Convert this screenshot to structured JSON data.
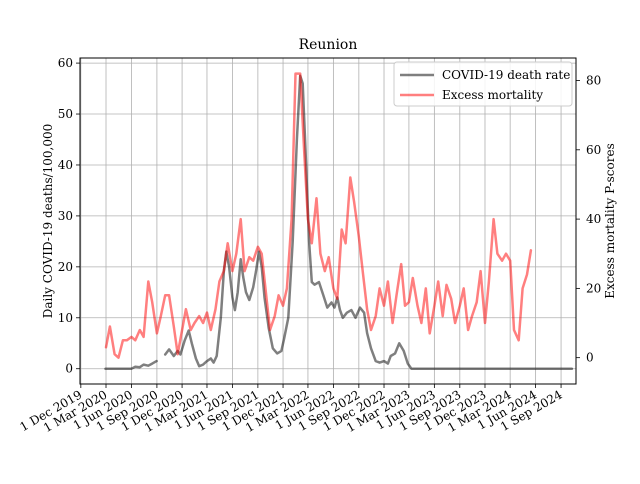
{
  "chart_data": {
    "type": "line",
    "title": "Reunion",
    "ylabel": "Daily COVID-19 deaths/100,000",
    "y2label": "Excess mortality P-scores",
    "ylim": [
      -3,
      61
    ],
    "y2lim": [
      -7.6,
      86.5
    ],
    "xlim": [
      "2019-11-28",
      "2024-10-25"
    ],
    "yticks": [
      0,
      10,
      20,
      30,
      40,
      50,
      60
    ],
    "y2ticks": [
      0,
      20,
      40,
      60,
      80
    ],
    "xticks": [
      {
        "date": "2019-12-01",
        "label": "1 Dec 2019"
      },
      {
        "date": "2020-03-01",
        "label": "1 Mar 2020"
      },
      {
        "date": "2020-06-01",
        "label": "1 Jun 2020"
      },
      {
        "date": "2020-09-01",
        "label": "1 Sep 2020"
      },
      {
        "date": "2020-12-01",
        "label": "1 Dec 2020"
      },
      {
        "date": "2021-03-01",
        "label": "1 Mar 2021"
      },
      {
        "date": "2021-06-01",
        "label": "1 Jun 2021"
      },
      {
        "date": "2021-09-01",
        "label": "1 Sep 2021"
      },
      {
        "date": "2021-12-01",
        "label": "1 Dec 2021"
      },
      {
        "date": "2022-03-01",
        "label": "1 Mar 2022"
      },
      {
        "date": "2022-06-01",
        "label": "1 Jun 2022"
      },
      {
        "date": "2022-09-01",
        "label": "1 Sep 2022"
      },
      {
        "date": "2022-12-01",
        "label": "1 Dec 2022"
      },
      {
        "date": "2023-03-01",
        "label": "1 Mar 2023"
      },
      {
        "date": "2023-06-01",
        "label": "1 Jun 2023"
      },
      {
        "date": "2023-09-01",
        "label": "1 Sep 2023"
      },
      {
        "date": "2023-12-01",
        "label": "1 Dec 2023"
      },
      {
        "date": "2024-03-01",
        "label": "1 Mar 2024"
      },
      {
        "date": "2024-06-01",
        "label": "1 Jun 2024"
      },
      {
        "date": "2024-09-01",
        "label": "1 Sep 2024"
      }
    ],
    "grid": true,
    "legend_position": "top-right",
    "series": [
      {
        "name": "COVID-19 death rate",
        "axis": "left",
        "color": "#000000",
        "opacity": 0.5,
        "points": [
          [
            "2020-02-28",
            0
          ],
          [
            "2020-04-20",
            0
          ],
          [
            "2020-05-10",
            0
          ],
          [
            "2020-06-01",
            0
          ],
          [
            "2020-06-15",
            0.4
          ],
          [
            "2020-07-01",
            0.3
          ],
          [
            "2020-07-15",
            0.8
          ],
          [
            "2020-08-01",
            0.6
          ],
          [
            "2020-08-15",
            1
          ],
          [
            "2020-08-31",
            1.5
          ],
          null,
          [
            "2020-10-01",
            2.8
          ],
          [
            "2020-10-15",
            3.8
          ],
          [
            "2020-11-01",
            2.5
          ],
          [
            "2020-11-15",
            3.5
          ],
          [
            "2020-11-25",
            2.8
          ],
          [
            "2020-12-10",
            5.5
          ],
          [
            "2020-12-25",
            7.5
          ],
          [
            "2021-01-05",
            5
          ],
          [
            "2021-01-20",
            2
          ],
          [
            "2021-02-01",
            0.5
          ],
          [
            "2021-02-15",
            0.8
          ],
          [
            "2021-03-01",
            1.5
          ],
          [
            "2021-03-15",
            2
          ],
          [
            "2021-03-25",
            1.2
          ],
          [
            "2021-04-05",
            2.5
          ],
          [
            "2021-04-20",
            10
          ],
          [
            "2021-05-01",
            19
          ],
          [
            "2021-05-10",
            23
          ],
          [
            "2021-05-20",
            20
          ],
          [
            "2021-06-01",
            14
          ],
          [
            "2021-06-10",
            11.5
          ],
          [
            "2021-06-20",
            15
          ],
          [
            "2021-07-01",
            21.5
          ],
          [
            "2021-07-10",
            18
          ],
          [
            "2021-07-20",
            15
          ],
          [
            "2021-08-01",
            13.5
          ],
          [
            "2021-08-15",
            16
          ],
          [
            "2021-08-25",
            19
          ],
          [
            "2021-09-05",
            23
          ],
          [
            "2021-09-15",
            20
          ],
          [
            "2021-09-25",
            14
          ],
          [
            "2021-10-10",
            8
          ],
          [
            "2021-10-25",
            4
          ],
          [
            "2021-11-10",
            3
          ],
          [
            "2021-11-25",
            3.5
          ],
          [
            "2021-12-05",
            6
          ],
          [
            "2021-12-20",
            10
          ],
          [
            "2022-01-05",
            25
          ],
          [
            "2022-01-20",
            45
          ],
          [
            "2022-02-01",
            57.5
          ],
          [
            "2022-02-10",
            56
          ],
          [
            "2022-02-20",
            43
          ],
          [
            "2022-03-05",
            25
          ],
          [
            "2022-03-15",
            17
          ],
          [
            "2022-03-25",
            16.5
          ],
          [
            "2022-04-10",
            17
          ],
          [
            "2022-04-25",
            14.5
          ],
          [
            "2022-05-10",
            12
          ],
          [
            "2022-05-25",
            13
          ],
          [
            "2022-06-05",
            12
          ],
          [
            "2022-06-15",
            14
          ],
          [
            "2022-06-25",
            11.5
          ],
          [
            "2022-07-05",
            10
          ],
          [
            "2022-07-20",
            11
          ],
          [
            "2022-08-05",
            11.5
          ],
          [
            "2022-08-20",
            10
          ],
          [
            "2022-09-05",
            12
          ],
          [
            "2022-09-20",
            11
          ],
          [
            "2022-10-01",
            7
          ],
          [
            "2022-10-15",
            4
          ],
          [
            "2022-11-01",
            1.5
          ],
          [
            "2022-11-15",
            1.2
          ],
          [
            "2022-12-01",
            1.5
          ],
          [
            "2022-12-15",
            1
          ],
          [
            "2022-12-25",
            2.5
          ],
          [
            "2023-01-10",
            3
          ],
          [
            "2023-01-25",
            5
          ],
          [
            "2023-02-10",
            3.5
          ],
          [
            "2023-02-25",
            1
          ],
          [
            "2023-03-10",
            0
          ],
          [
            "2024-10-10",
            0
          ]
        ]
      },
      {
        "name": "Excess mortality",
        "axis": "right",
        "color": "#ff0000",
        "opacity": 0.5,
        "points": [
          [
            "2020-03-01",
            3
          ],
          [
            "2020-03-15",
            9
          ],
          [
            "2020-04-01",
            1
          ],
          [
            "2020-04-15",
            0
          ],
          [
            "2020-05-01",
            5
          ],
          [
            "2020-05-15",
            5
          ],
          [
            "2020-06-01",
            6
          ],
          [
            "2020-06-15",
            5
          ],
          [
            "2020-07-01",
            8
          ],
          [
            "2020-07-15",
            6
          ],
          [
            "2020-08-01",
            22
          ],
          [
            "2020-08-15",
            16
          ],
          [
            "2020-09-01",
            7
          ],
          [
            "2020-09-15",
            12
          ],
          [
            "2020-10-01",
            18
          ],
          [
            "2020-10-15",
            18
          ],
          [
            "2020-11-01",
            9
          ],
          [
            "2020-11-15",
            1
          ],
          [
            "2020-12-01",
            8
          ],
          [
            "2020-12-15",
            14
          ],
          [
            "2021-01-01",
            8
          ],
          [
            "2021-01-15",
            10
          ],
          [
            "2021-02-01",
            12
          ],
          [
            "2021-02-15",
            10
          ],
          [
            "2021-03-01",
            13
          ],
          [
            "2021-03-15",
            8
          ],
          [
            "2021-04-01",
            14
          ],
          [
            "2021-04-15",
            22
          ],
          [
            "2021-05-01",
            25
          ],
          [
            "2021-05-15",
            33
          ],
          [
            "2021-06-01",
            25
          ],
          [
            "2021-06-15",
            30
          ],
          [
            "2021-07-01",
            40
          ],
          [
            "2021-07-15",
            25
          ],
          [
            "2021-08-01",
            29
          ],
          [
            "2021-08-15",
            28
          ],
          [
            "2021-09-01",
            32
          ],
          [
            "2021-09-15",
            30
          ],
          [
            "2021-10-01",
            18
          ],
          [
            "2021-10-15",
            8
          ],
          [
            "2021-11-01",
            12
          ],
          [
            "2021-11-15",
            18
          ],
          [
            "2021-12-01",
            15
          ],
          [
            "2021-12-15",
            20
          ],
          [
            "2022-01-01",
            40
          ],
          [
            "2022-01-15",
            82
          ],
          [
            "2022-02-01",
            82
          ],
          [
            "2022-02-15",
            60
          ],
          [
            "2022-03-01",
            40
          ],
          [
            "2022-03-15",
            33
          ],
          [
            "2022-04-01",
            46
          ],
          [
            "2022-04-15",
            30
          ],
          [
            "2022-05-01",
            25
          ],
          [
            "2022-05-15",
            29
          ],
          [
            "2022-06-01",
            20
          ],
          [
            "2022-06-15",
            17
          ],
          [
            "2022-07-01",
            37
          ],
          [
            "2022-07-15",
            33
          ],
          [
            "2022-08-01",
            52
          ],
          [
            "2022-08-15",
            45
          ],
          [
            "2022-09-01",
            35
          ],
          [
            "2022-09-15",
            25
          ],
          [
            "2022-10-01",
            14
          ],
          [
            "2022-10-15",
            8
          ],
          [
            "2022-11-01",
            12
          ],
          [
            "2022-11-15",
            20
          ],
          [
            "2022-12-01",
            15
          ],
          [
            "2022-12-15",
            22
          ],
          [
            "2023-01-01",
            10
          ],
          [
            "2023-01-15",
            18
          ],
          [
            "2023-02-01",
            27
          ],
          [
            "2023-02-15",
            15
          ],
          [
            "2023-03-01",
            16
          ],
          [
            "2023-03-15",
            23
          ],
          [
            "2023-04-01",
            15
          ],
          [
            "2023-04-15",
            10
          ],
          [
            "2023-05-01",
            20
          ],
          [
            "2023-05-15",
            7
          ],
          [
            "2023-06-01",
            15
          ],
          [
            "2023-06-15",
            22
          ],
          [
            "2023-07-01",
            12
          ],
          [
            "2023-07-15",
            21
          ],
          [
            "2023-08-01",
            17
          ],
          [
            "2023-08-15",
            10
          ],
          [
            "2023-09-01",
            15
          ],
          [
            "2023-09-15",
            20
          ],
          [
            "2023-10-01",
            8
          ],
          [
            "2023-10-15",
            12
          ],
          [
            "2023-11-01",
            16
          ],
          [
            "2023-11-15",
            25
          ],
          [
            "2023-12-01",
            10
          ],
          [
            "2023-12-15",
            22
          ],
          [
            "2024-01-01",
            40
          ],
          [
            "2024-01-15",
            30
          ],
          [
            "2024-02-01",
            28
          ],
          [
            "2024-02-15",
            30
          ],
          [
            "2024-03-01",
            28
          ],
          [
            "2024-03-15",
            8
          ],
          [
            "2024-04-01",
            5
          ],
          [
            "2024-04-15",
            20
          ],
          [
            "2024-05-01",
            24
          ],
          [
            "2024-05-15",
            31
          ]
        ]
      }
    ]
  }
}
